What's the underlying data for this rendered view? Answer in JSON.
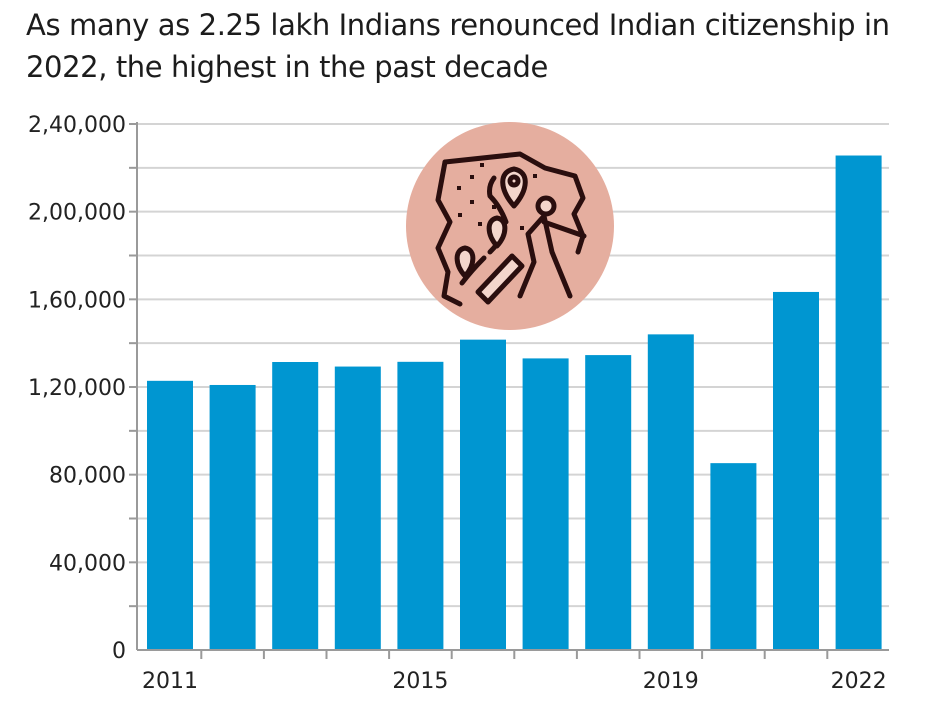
{
  "chart_data": {
    "type": "bar",
    "title": "As many as 2.25 lakh Indians renounced Indian citizenship in 2022, the highest in the past decade",
    "xlabel": "",
    "ylabel": "",
    "categories": [
      "2011",
      "2012",
      "2013",
      "2014",
      "2015",
      "2016",
      "2017",
      "2018",
      "2019",
      "2020",
      "2021",
      "2022"
    ],
    "x_tick_labels": [
      "2011",
      "",
      "",
      "",
      "2015",
      "",
      "",
      "",
      "2019",
      "",
      "",
      "2022"
    ],
    "values": [
      122819,
      120923,
      131405,
      129328,
      131489,
      141603,
      133049,
      134561,
      144017,
      85256,
      163370,
      225620
    ],
    "ylim": [
      0,
      240000
    ],
    "y_ticks": [
      0,
      40000,
      80000,
      120000,
      160000,
      200000,
      240000
    ],
    "y_tick_labels": [
      "0",
      "40,000",
      "80,000",
      "1,20,000",
      "1,60,000",
      "2,00,000",
      "2,40,000"
    ],
    "grid": true,
    "bar_color": "#0096d1",
    "grid_color": "#d4d4d4",
    "axis_color": "#9a9a9a",
    "icon": "migration-map-traveller-icon",
    "icon_bg_color": "#e5ae9f",
    "icon_color": "#2a0e0e"
  }
}
